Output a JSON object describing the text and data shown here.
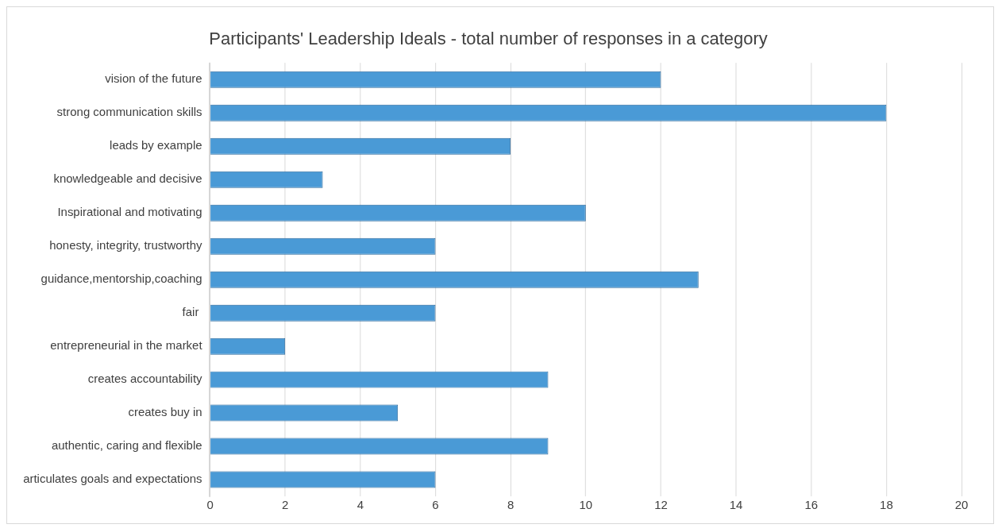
{
  "chart_data": {
    "type": "bar",
    "orientation": "horizontal",
    "title": "Participants' Leadership Ideals - total number of responses in a category",
    "categories": [
      "vision of the future",
      "strong communication skills",
      "leads by example",
      "knowledgeable and decisive",
      "Inspirational and motivating",
      "honesty, integrity, trustworthy",
      "guidance,mentorship,coaching",
      "fair ",
      "entrepreneurial in the market",
      "creates accountability",
      "creates buy in",
      "authentic, caring and flexible",
      "articulates goals and expectations"
    ],
    "values": [
      12,
      18,
      8,
      3,
      10,
      6,
      13,
      6,
      2,
      9,
      5,
      9,
      6
    ],
    "color": "#4a9ad6",
    "xlim": [
      0,
      20
    ],
    "xticks": [
      0,
      2,
      4,
      6,
      8,
      10,
      12,
      14,
      16,
      18,
      20
    ],
    "grid": "x",
    "legend": false
  }
}
